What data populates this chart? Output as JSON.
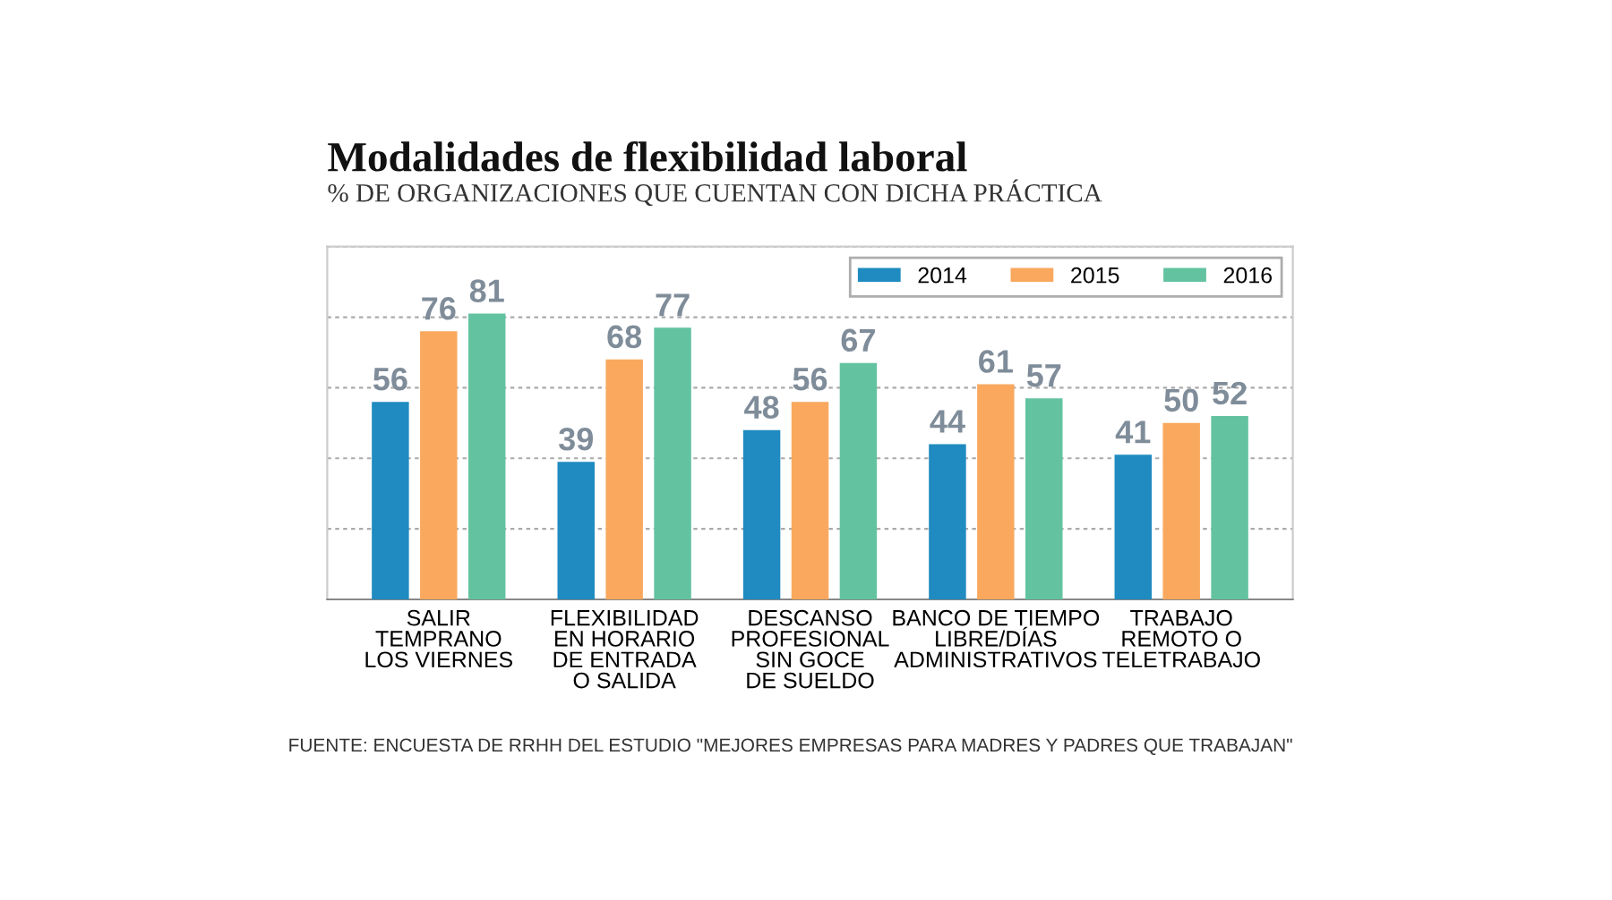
{
  "chart_data": {
    "type": "bar",
    "title": "Modalidades de flexibilidad laboral",
    "subtitle": "% DE ORGANIZACIONES QUE CUENTAN CON DICHA PRÁCTICA",
    "categories": [
      "SALIR\nTEMPRANO\nLOS VIERNES",
      "FLEXIBILIDAD\nEN HORARIO\nDE ENTRADA\nO SALIDA",
      "DESCANSO\nPROFESIONAL\nSIN GOCE\nDE SUELDO",
      "BANCO DE TIEMPO\nLIBRE/DÍAS\nADMINISTRATIVOS",
      "TRABAJO\nREMOTO O\nTELETRABAJO"
    ],
    "series": [
      {
        "name": "2014",
        "color": "#1f8bc0",
        "values": [
          56,
          39,
          48,
          44,
          41
        ]
      },
      {
        "name": "2015",
        "color": "#f9a85e",
        "values": [
          76,
          68,
          56,
          61,
          50
        ]
      },
      {
        "name": "2016",
        "color": "#63c3a0",
        "values": [
          81,
          77,
          67,
          57,
          52
        ]
      }
    ],
    "ylim": [
      0,
      100
    ],
    "yticks": [
      {
        "value": 0,
        "label": null
      },
      {
        "value": 20,
        "label": null
      },
      {
        "value": 40,
        "label": null
      },
      {
        "value": 60,
        "label": null
      },
      {
        "value": 80,
        "label": null
      },
      {
        "value": 100,
        "label": null
      }
    ],
    "tick_labels": "x",
    "grid": "y",
    "legend": "top right",
    "data_labels": true,
    "annotations": [
      "FUENTE: ENCUESTA DE RRHH DEL ESTUDIO \"MEJORES EMPRESAS PARA MADRES Y PADRES QUE TRABAJAN\""
    ]
  }
}
